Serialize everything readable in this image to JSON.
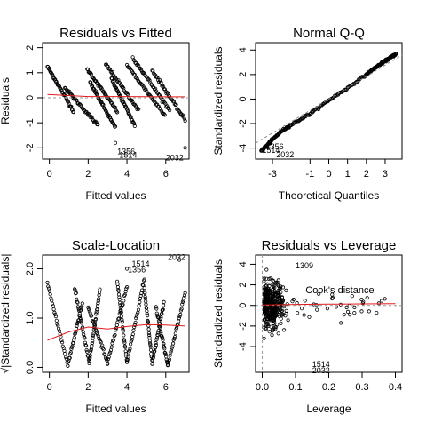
{
  "chart_data": [
    {
      "type": "scatter",
      "title": "Residuals vs Fitted",
      "xlabel": "Fitted values",
      "ylabel": "Residuals",
      "xlim": [
        -0.35,
        7.2
      ],
      "ylim": [
        -2.45,
        2.2
      ],
      "xticks": [
        "0",
        "2",
        "4",
        "6"
      ],
      "xtick_values": [
        0,
        2,
        4,
        6
      ],
      "yticks": [
        "-2",
        "-1",
        "0",
        "1",
        "2"
      ],
      "ytick_values": [
        -2,
        -1,
        0,
        1,
        2
      ],
      "bands": [
        {
          "x": [
            -0.1,
            1.25
          ],
          "y": [
            1.25,
            -0.55
          ]
        },
        {
          "x": [
            0.8,
            2.5
          ],
          "y": [
            0.4,
            -1.1
          ]
        },
        {
          "x": [
            1.95,
            3.5
          ],
          "y": [
            1.15,
            -0.55
          ]
        },
        {
          "x": [
            2.1,
            3.4
          ],
          "y": [
            0.6,
            -1.2
          ]
        },
        {
          "x": [
            2.9,
            4.6
          ],
          "y": [
            1.35,
            -0.5
          ]
        },
        {
          "x": [
            3.2,
            4.4
          ],
          "y": [
            0.75,
            -1.1
          ]
        },
        {
          "x": [
            4.0,
            5.95
          ],
          "y": [
            1.3,
            -0.7
          ]
        },
        {
          "x": [
            4.3,
            6.2
          ],
          "y": [
            1.6,
            -0.5
          ]
        },
        {
          "x": [
            5.3,
            7.0
          ],
          "y": [
            1.1,
            -0.9
          ]
        }
      ],
      "extra_points": [
        {
          "x": 3.4,
          "y": -1.8
        },
        {
          "x": 7.0,
          "y": -2.0
        }
      ],
      "smooth": {
        "x": [
          -0.1,
          2,
          4,
          6,
          7
        ],
        "y": [
          0.13,
          0.05,
          0.05,
          0.04,
          0.04
        ]
      },
      "labels": [
        {
          "text": "1356",
          "x": 3.5,
          "y": -2.25
        },
        {
          "text": "1514",
          "x": 3.6,
          "y": -2.4
        },
        {
          "text": "2032",
          "x": 6.0,
          "y": -2.5
        }
      ]
    },
    {
      "type": "scatter",
      "title": "Normal Q-Q",
      "xlabel": "Theoretical Quantiles",
      "ylabel": "Standardized residuals",
      "xlim": [
        -3.9,
        3.9
      ],
      "ylim": [
        -4.9,
        4.6
      ],
      "xticks": [
        "-3",
        "-1",
        "0",
        "1",
        "2",
        "3"
      ],
      "xtick_values": [
        -3,
        -1,
        0,
        1,
        2,
        3
      ],
      "yticks": [
        "-4",
        "-2",
        "0",
        "2",
        "4"
      ],
      "ytick_values": [
        -4,
        -2,
        0,
        2,
        4
      ],
      "curve": {
        "x": [
          -3.6,
          -3.3,
          -3.0,
          -2.5,
          -2.0,
          -1.0,
          0,
          1.0,
          2.0,
          2.5,
          3.0,
          3.3,
          3.6
        ],
        "y": [
          -4.2,
          -3.8,
          -3.3,
          -2.6,
          -2.1,
          -1.2,
          -0.1,
          0.9,
          2.0,
          2.6,
          3.1,
          3.4,
          3.7
        ]
      },
      "reference_line": {
        "x": [
          -3.9,
          3.9
        ],
        "y": [
          -3.6,
          3.6
        ]
      },
      "labels": [
        {
          "text": "1356",
          "x": -3.35,
          "y": -4.1
        },
        {
          "text": "1514",
          "x": -3.55,
          "y": -4.4
        },
        {
          "text": "2032",
          "x": -2.8,
          "y": -4.75
        }
      ]
    },
    {
      "type": "scatter",
      "title": "Scale-Location",
      "xlabel": "Fitted values",
      "ylabel": "√|Standardized residuals|",
      "xlim": [
        -0.35,
        7.2
      ],
      "ylim": [
        -0.1,
        2.28
      ],
      "xticks": [
        "0",
        "2",
        "4",
        "6"
      ],
      "xtick_values": [
        0,
        2,
        4,
        6
      ],
      "yticks": [
        "0.0",
        "1.0",
        "2.0"
      ],
      "ytick_values": [
        0.0,
        1.0,
        2.0
      ],
      "vees": [
        {
          "left": [
            -0.1,
            1.7
          ],
          "bottom": [
            0.95,
            0.05
          ],
          "right": [
            1.7,
            1.3
          ]
        },
        {
          "left": [
            1.3,
            1.6
          ],
          "bottom": [
            2.05,
            0.1
          ],
          "right": [
            2.6,
            1.55
          ]
        },
        {
          "left": [
            2.0,
            1.2
          ],
          "bottom": [
            3.0,
            0.1
          ],
          "right": [
            4.0,
            1.65
          ]
        },
        {
          "left": [
            3.5,
            1.75
          ],
          "bottom": [
            4.0,
            0.1
          ],
          "right": [
            4.9,
            1.8
          ]
        },
        {
          "left": [
            4.9,
            1.6
          ],
          "bottom": [
            5.3,
            0.1
          ],
          "right": [
            5.9,
            1.3
          ]
        },
        {
          "left": [
            5.5,
            1.2
          ],
          "bottom": [
            6.1,
            0.05
          ],
          "right": [
            7.0,
            1.5
          ]
        }
      ],
      "extra_points": [
        {
          "x": 6.7,
          "y": 2.18
        },
        {
          "x": 4.0,
          "y": 2.0
        }
      ],
      "smooth": {
        "x": [
          -0.1,
          1.0,
          2.0,
          3.0,
          4.0,
          5.0,
          6.0,
          7.0
        ],
        "y": [
          0.55,
          0.72,
          0.82,
          0.78,
          0.83,
          0.87,
          0.86,
          0.84
        ]
      },
      "labels": [
        {
          "text": "1514",
          "x": 4.25,
          "y": 2.05
        },
        {
          "text": "1356",
          "x": 4.05,
          "y": 1.93
        },
        {
          "text": "2032",
          "x": 6.1,
          "y": 2.18
        }
      ]
    },
    {
      "type": "scatter",
      "title": "Residuals vs Leverage",
      "xlabel": "Leverage",
      "ylabel": "Standardized residuals",
      "xlim": [
        -0.02,
        0.42
      ],
      "ylim": [
        -6.5,
        4.9
      ],
      "xticks": [
        "0.0",
        "0.1",
        "0.2",
        "0.3",
        "0.4"
      ],
      "xtick_values": [
        0.0,
        0.1,
        0.2,
        0.3,
        0.4
      ],
      "yticks": [
        "-4",
        "-2",
        "0",
        "2",
        "4"
      ],
      "ytick_values": [
        -4,
        -2,
        0,
        2,
        4
      ],
      "smooth": {
        "x": [
          0.0,
          0.1,
          0.2,
          0.3,
          0.4
        ],
        "y": [
          0.05,
          0.1,
          0.12,
          0.15,
          0.18
        ]
      },
      "labels": [
        {
          "text": "1309",
          "x": 0.1,
          "y": 3.6
        },
        {
          "text": "Cook's distance",
          "x": 0.13,
          "y": 1.2
        },
        {
          "text": "1514",
          "x": 0.15,
          "y": -6.0
        },
        {
          "text": "2032",
          "x": 0.15,
          "y": -6.6
        }
      ]
    }
  ]
}
